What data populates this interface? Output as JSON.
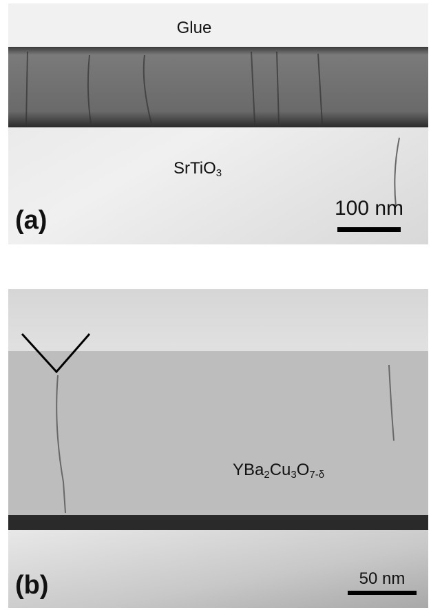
{
  "panel_a": {
    "label": "(a)",
    "glue": "Glue",
    "substrate": [
      "SrTiO",
      "3"
    ],
    "scale_bar": "100 nm"
  },
  "panel_b": {
    "label": "(b)",
    "film": [
      "YBa",
      "2",
      "Cu",
      "3",
      "O",
      "7-δ"
    ],
    "scale_bar": "50 nm"
  }
}
